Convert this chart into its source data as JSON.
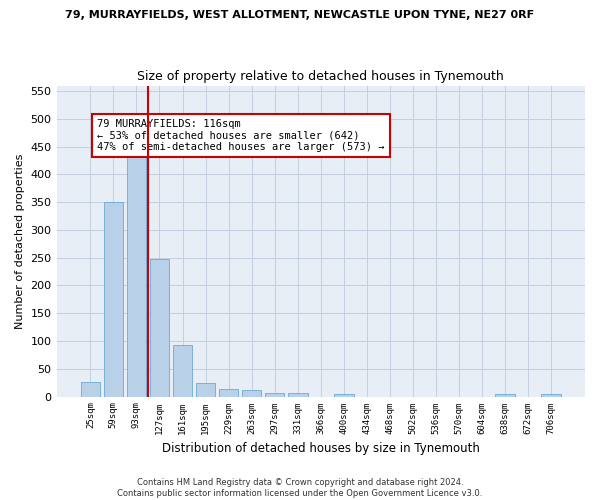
{
  "title_line1": "79, MURRAYFIELDS, WEST ALLOTMENT, NEWCASTLE UPON TYNE, NE27 0RF",
  "title_line2": "Size of property relative to detached houses in Tynemouth",
  "xlabel": "Distribution of detached houses by size in Tynemouth",
  "ylabel": "Number of detached properties",
  "footnote": "Contains HM Land Registry data © Crown copyright and database right 2024.\nContains public sector information licensed under the Open Government Licence v3.0.",
  "bar_labels": [
    "25sqm",
    "59sqm",
    "93sqm",
    "127sqm",
    "161sqm",
    "195sqm",
    "229sqm",
    "263sqm",
    "297sqm",
    "331sqm",
    "366sqm",
    "400sqm",
    "434sqm",
    "468sqm",
    "502sqm",
    "536sqm",
    "570sqm",
    "604sqm",
    "638sqm",
    "672sqm",
    "706sqm"
  ],
  "bar_values": [
    27,
    350,
    445,
    248,
    93,
    25,
    14,
    11,
    6,
    6,
    0,
    5,
    0,
    0,
    0,
    0,
    0,
    0,
    5,
    0,
    5
  ],
  "bar_color": "#b8d0e8",
  "bar_edge_color": "#6aaad4",
  "bg_color": "#e8eef6",
  "grid_color": "#c5cfe0",
  "vline_x": 2.5,
  "vline_color": "#cc0000",
  "annotation_text": "79 MURRAYFIELDS: 116sqm\n← 53% of detached houses are smaller (642)\n47% of semi-detached houses are larger (573) →",
  "ylim": [
    0,
    560
  ],
  "yticks": [
    0,
    50,
    100,
    150,
    200,
    250,
    300,
    350,
    400,
    450,
    500,
    550
  ]
}
